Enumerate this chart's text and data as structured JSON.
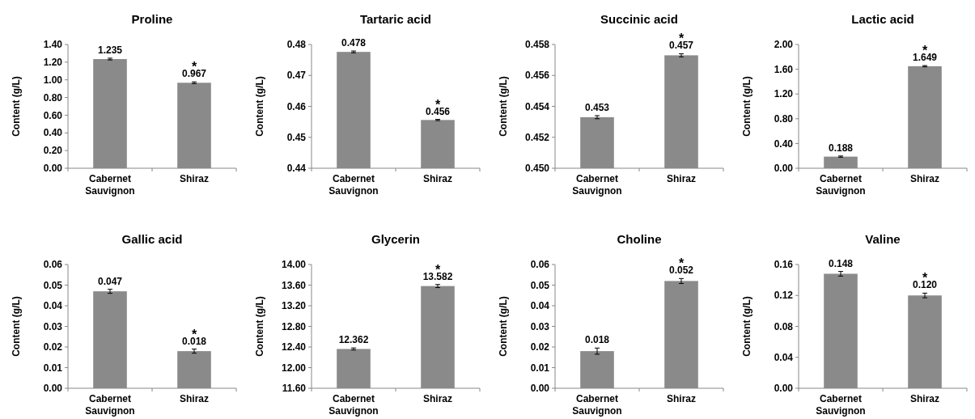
{
  "chart_data": [
    {
      "type": "bar",
      "title": "Proline",
      "ylabel": "Content (g/L)",
      "categories": [
        "Cabernet Sauvignon",
        "Shiraz"
      ],
      "values": [
        1.235,
        0.967
      ],
      "color": "#8a8a8a",
      "errors": [
        0.01,
        0.01
      ],
      "data_labels": true,
      "annotations": [
        {
          "text": "*",
          "x": "Shiraz",
          "y": 0.967
        }
      ],
      "ylim": [
        0,
        1.4
      ],
      "yticks": [
        {
          "value": 0,
          "label": "0.00"
        },
        {
          "value": 0.2,
          "label": "0.20"
        },
        {
          "value": 0.4,
          "label": "0.40"
        },
        {
          "value": 0.6,
          "label": "0.60"
        },
        {
          "value": 0.8,
          "label": "0.80"
        },
        {
          "value": 1,
          "label": "1.00"
        },
        {
          "value": 1.2,
          "label": "1.20"
        },
        {
          "value": 1.4,
          "label": "1.40"
        }
      ]
    },
    {
      "type": "bar",
      "title": "Tartaric acid",
      "ylabel": "Content (g/L)",
      "categories": [
        "Cabernet Sauvignon",
        "Shiraz"
      ],
      "values": [
        0.4776,
        0.4556
      ],
      "value_labels": [
        "0.478",
        "0.456"
      ],
      "color": "#8a8a8a",
      "errors": [
        0.0003,
        0.0002
      ],
      "annotations": [
        {
          "text": "*",
          "x": "Shiraz",
          "y": 0.4556
        }
      ],
      "ylim": [
        0.44,
        0.48
      ],
      "yticks": [
        0.44,
        0.45,
        0.46,
        0.47,
        0.48
      ]
    },
    {
      "type": "bar",
      "title": "Succinic acid",
      "ylabel": "Content (g/L)",
      "categories": [
        "Cabernet Sauvignon",
        "Shiraz"
      ],
      "values": [
        0.4533,
        0.4573
      ],
      "value_labels": [
        "0.453",
        "0.457"
      ],
      "color": "#8a8a8a",
      "errors": [
        0.0001,
        0.0001
      ],
      "annotations": [
        {
          "text": "*",
          "x": "Shiraz",
          "y": 0.4573
        }
      ],
      "ylim": [
        0.45,
        0.458
      ],
      "yticks": [
        {
          "value": 0.45,
          "label": "0.450"
        },
        0.452,
        0.454,
        0.456,
        0.458
      ]
    },
    {
      "type": "bar",
      "title": "Lactic acid",
      "ylabel": "Content (g/L)",
      "categories": [
        "Cabernet Sauvignon",
        "Shiraz"
      ],
      "values": [
        0.188,
        1.649
      ],
      "color": "#8a8a8a",
      "errors": [
        0.01,
        0.01
      ],
      "data_labels": true,
      "annotations": [
        {
          "text": "*",
          "x": "Shiraz",
          "y": 1.649
        }
      ],
      "ylim": [
        0,
        2
      ],
      "yticks": [
        {
          "value": 0,
          "label": "0.00"
        },
        {
          "value": 0.4,
          "label": "0.40"
        },
        {
          "value": 0.8,
          "label": "0.80"
        },
        {
          "value": 1.2,
          "label": "1.20"
        },
        {
          "value": 1.6,
          "label": "1.60"
        },
        {
          "value": 2,
          "label": "2.00"
        }
      ]
    },
    {
      "type": "bar",
      "title": "Gallic acid",
      "ylabel": "Content (g/L)",
      "categories": [
        "Cabernet Sauvignon",
        "Shiraz"
      ],
      "values": [
        0.047,
        0.018
      ],
      "color": "#8a8a8a",
      "errors": [
        0.001,
        0.001
      ],
      "data_labels": true,
      "annotations": [
        {
          "text": "*",
          "x": "Shiraz",
          "y": 0.018
        }
      ],
      "ylim": [
        0,
        0.06
      ],
      "yticks": [
        {
          "value": 0,
          "label": "0.00"
        },
        0.01,
        0.02,
        0.03,
        0.04,
        0.05,
        0.06
      ]
    },
    {
      "type": "bar",
      "title": "Glycerin",
      "ylabel": "Content (g/L)",
      "categories": [
        "Cabernet Sauvignon",
        "Shiraz"
      ],
      "values": [
        12.362,
        13.582
      ],
      "color": "#8a8a8a",
      "errors": [
        0.02,
        0.03
      ],
      "data_labels": true,
      "annotations": [
        {
          "text": "*",
          "x": "Shiraz",
          "y": 13.582
        }
      ],
      "ylim": [
        11.6,
        14
      ],
      "yticks": [
        {
          "value": 11.6,
          "label": "11.60"
        },
        {
          "value": 12,
          "label": "12.00"
        },
        {
          "value": 12.4,
          "label": "12.40"
        },
        {
          "value": 12.8,
          "label": "12.80"
        },
        {
          "value": 13.2,
          "label": "13.20"
        },
        {
          "value": 13.6,
          "label": "13.60"
        },
        {
          "value": 14,
          "label": "14.00"
        }
      ]
    },
    {
      "type": "bar",
      "title": "Choline",
      "ylabel": "Content (g/L)",
      "categories": [
        "Cabernet Sauvignon",
        "Shiraz"
      ],
      "values": [
        0.018,
        0.052
      ],
      "color": "#8a8a8a",
      "errors": [
        0.0015,
        0.0012
      ],
      "data_labels": true,
      "annotations": [
        {
          "text": "*",
          "x": "Shiraz",
          "y": 0.052
        }
      ],
      "ylim": [
        0,
        0.06
      ],
      "yticks": [
        {
          "value": 0,
          "label": "0.00"
        },
        0.01,
        0.02,
        0.03,
        0.04,
        0.05,
        0.06
      ]
    },
    {
      "type": "bar",
      "title": "Valine",
      "ylabel": "Content (g/L)",
      "categories": [
        "Cabernet Sauvignon",
        "Shiraz"
      ],
      "values": [
        0.148,
        0.12
      ],
      "value_labels": [
        "0.148",
        "0.120"
      ],
      "color": "#8a8a8a",
      "errors": [
        0.003,
        0.003
      ],
      "annotations": [
        {
          "text": "*",
          "x": "Shiraz",
          "y": 0.12
        }
      ],
      "ylim": [
        0,
        0.16
      ],
      "yticks": [
        {
          "value": 0,
          "label": "0.00"
        },
        0.04,
        0.08,
        0.12,
        0.16
      ]
    }
  ]
}
